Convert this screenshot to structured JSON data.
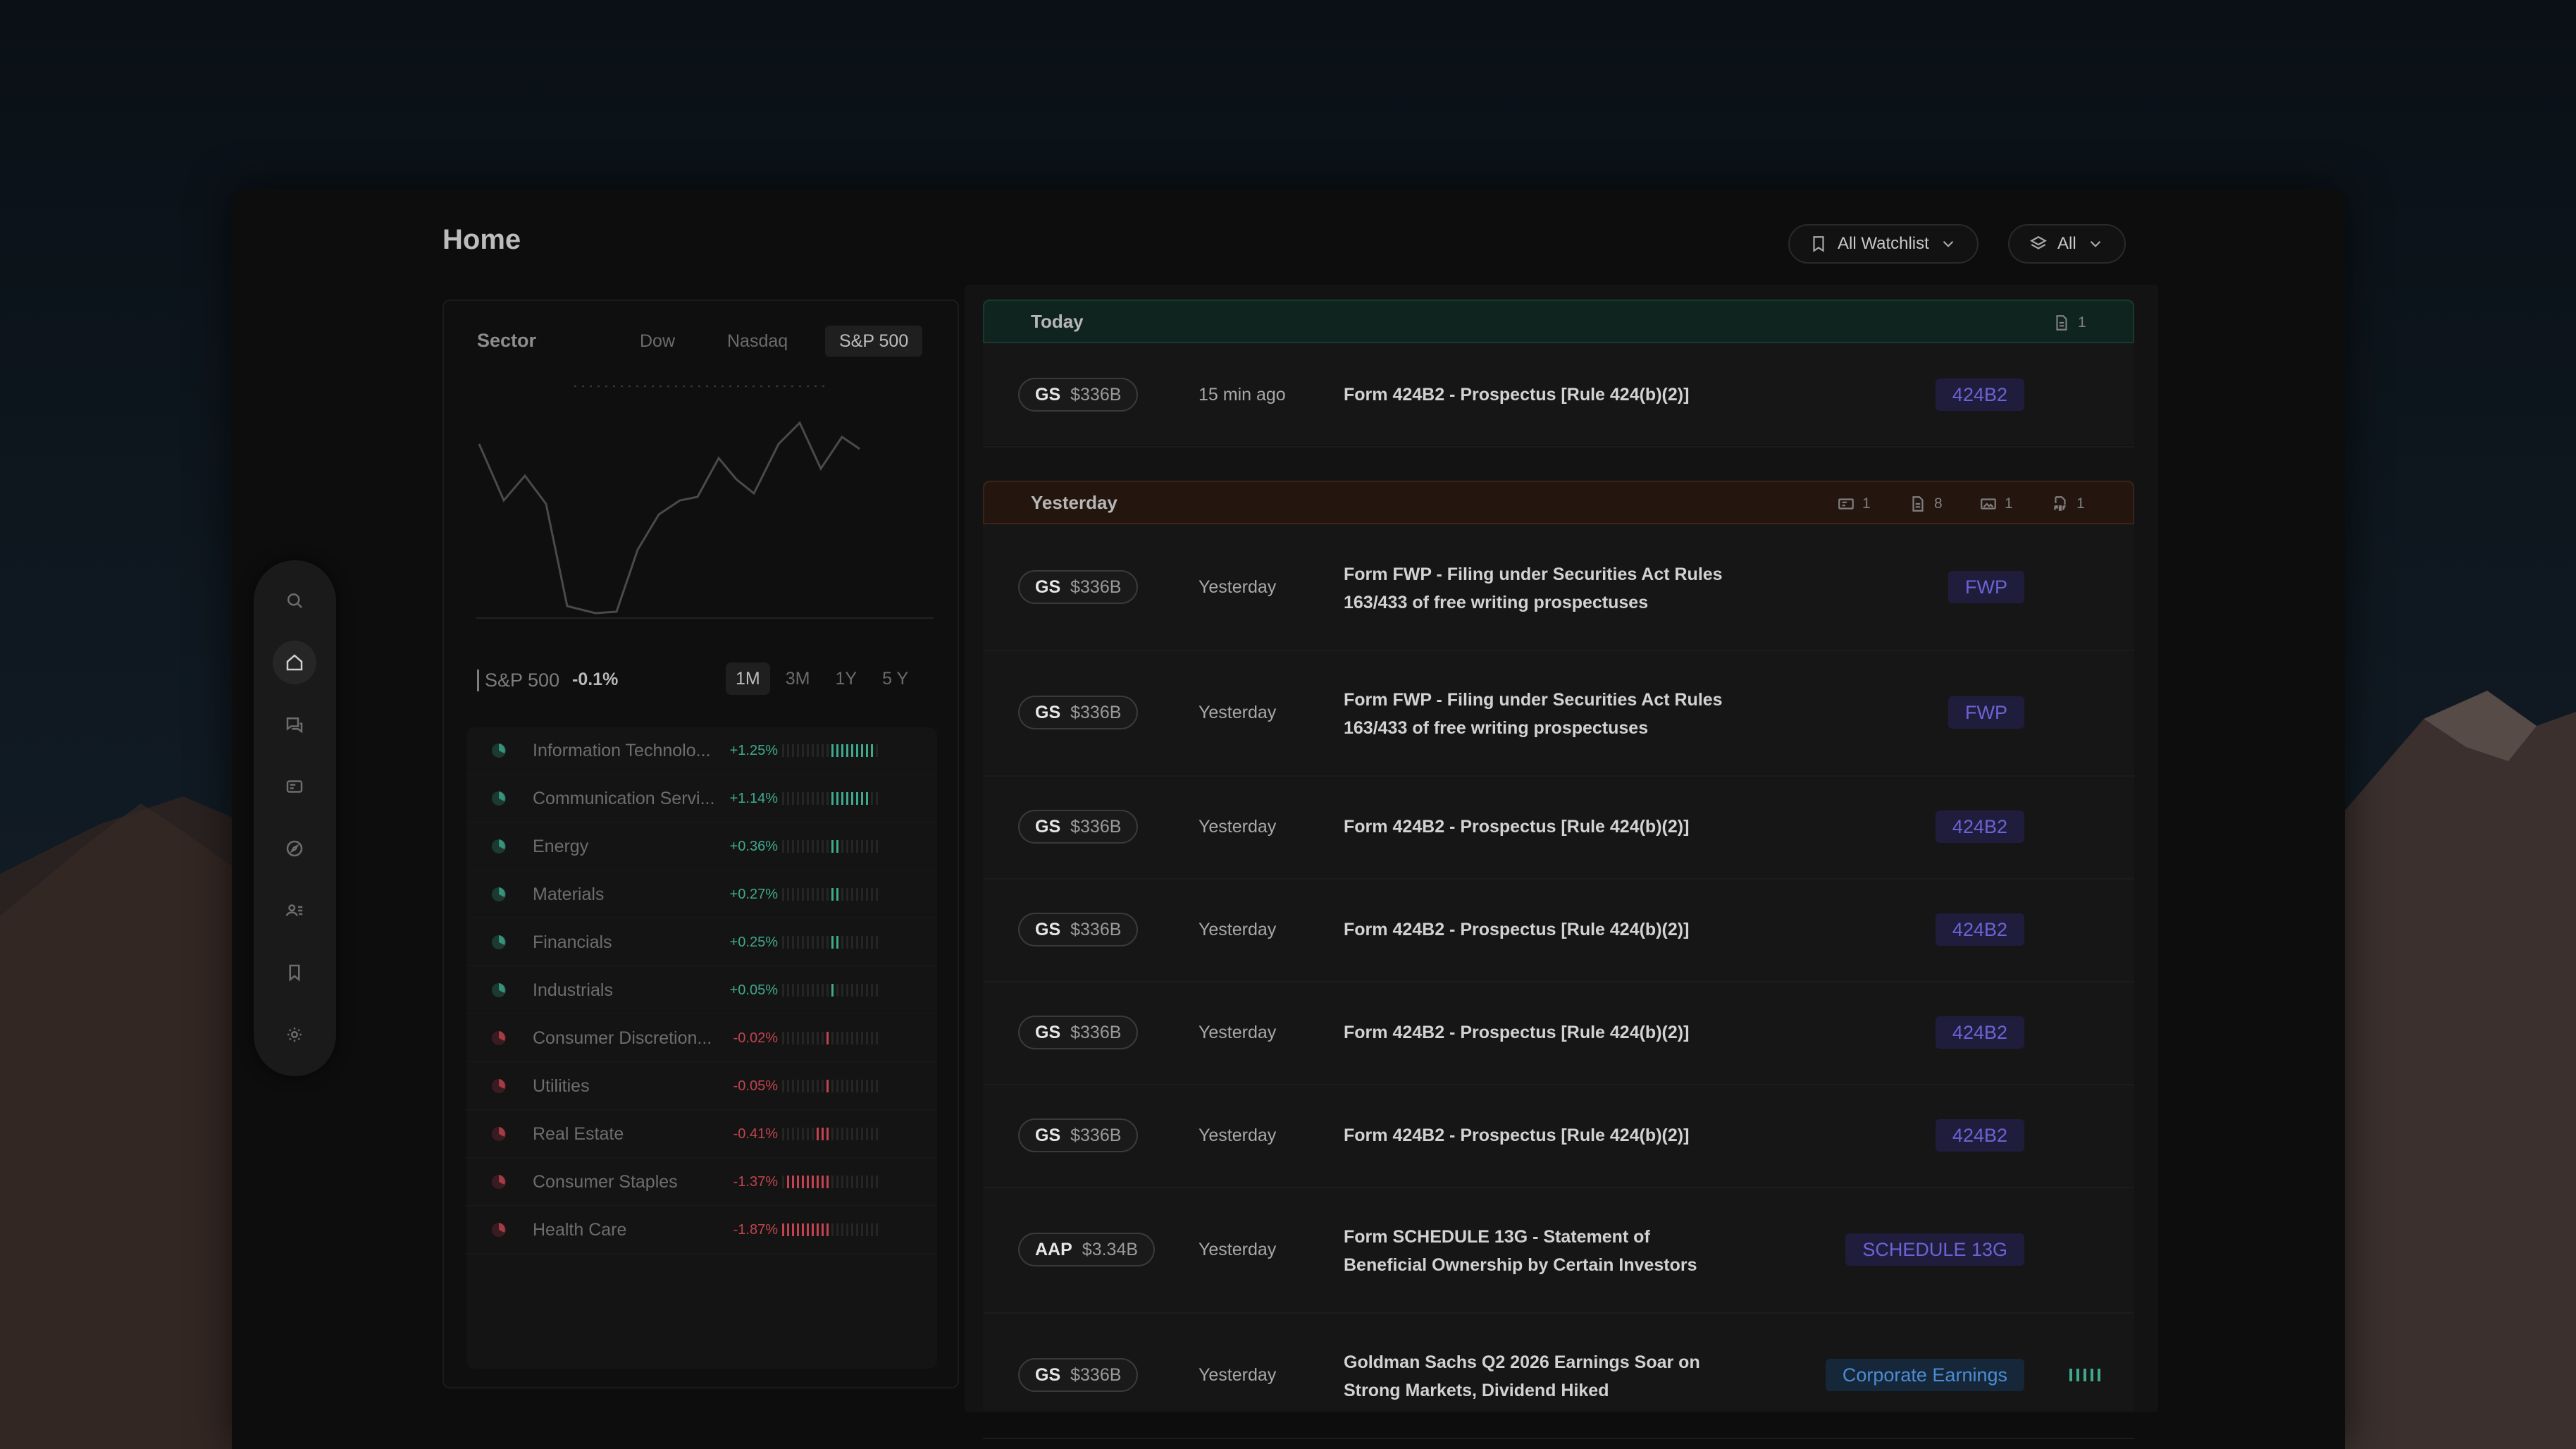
{
  "page": {
    "title": "Home"
  },
  "filters": {
    "watchlist_label": "All Watchlist",
    "type_label": "All"
  },
  "sidebar": {
    "items": [
      {
        "icon": "search-icon"
      },
      {
        "icon": "home-icon",
        "active": true
      },
      {
        "icon": "chat-icon"
      },
      {
        "icon": "card-icon"
      },
      {
        "icon": "compass-icon"
      },
      {
        "icon": "users-icon"
      },
      {
        "icon": "bookmark-icon"
      },
      {
        "icon": "gear-icon"
      }
    ]
  },
  "sector_panel": {
    "title": "Sector",
    "tabs": [
      "Dow",
      "Nasdaq",
      "S&P 500"
    ],
    "active_tab": "S&P 500",
    "index_label": "S&P 500",
    "index_change": "-0.1%",
    "ranges": [
      "1M",
      "3M",
      "1Y",
      "5 Y"
    ],
    "active_range": "1M",
    "sectors": [
      {
        "name": "Information Technolo...",
        "change": "+1.25%",
        "color": "#3fa98c",
        "bars": 9
      },
      {
        "name": "Communication Servi...",
        "change": "+1.14%",
        "color": "#3fa98c",
        "bars": 8
      },
      {
        "name": "Energy",
        "change": "+0.36%",
        "color": "#3fa98c",
        "bars": 2
      },
      {
        "name": "Materials",
        "change": "+0.27%",
        "color": "#3fa98c",
        "bars": 2
      },
      {
        "name": "Financials",
        "change": "+0.25%",
        "color": "#3fa98c",
        "bars": 2
      },
      {
        "name": "Industrials",
        "change": "+0.05%",
        "color": "#3fa98c",
        "bars": 1
      },
      {
        "name": "Consumer Discretion...",
        "change": "-0.02%",
        "color": "#c2434f",
        "bars": 1
      },
      {
        "name": "Utilities",
        "change": "-0.05%",
        "color": "#c2434f",
        "bars": 1
      },
      {
        "name": "Real Estate",
        "change": "-0.41%",
        "color": "#c2434f",
        "bars": 3
      },
      {
        "name": "Consumer Staples",
        "change": "-1.37%",
        "color": "#c2434f",
        "bars": 9
      },
      {
        "name": "Health Care",
        "change": "-1.87%",
        "color": "#c2434f",
        "bars": 12
      }
    ]
  },
  "feed": {
    "today": {
      "label": "Today",
      "count": "1"
    },
    "yesterday": {
      "label": "Yesterday",
      "counts": [
        "1",
        "8",
        "1",
        "1"
      ]
    },
    "rows": [
      {
        "ticker": "GS",
        "cap": "$336B",
        "time": "15 min ago",
        "title": "Form 424B2 - Prospectus [Rule 424(b)(2)]",
        "badge": "424B2"
      },
      {
        "ticker": "GS",
        "cap": "$336B",
        "time": "Yesterday",
        "title": "Form FWP - Filing under Securities Act Rules 163/433 of free writing prospectuses",
        "badge": "FWP"
      },
      {
        "ticker": "GS",
        "cap": "$336B",
        "time": "Yesterday",
        "title": "Form FWP - Filing under Securities Act Rules 163/433 of free writing prospectuses",
        "badge": "FWP"
      },
      {
        "ticker": "GS",
        "cap": "$336B",
        "time": "Yesterday",
        "title": "Form 424B2 - Prospectus [Rule 424(b)(2)]",
        "badge": "424B2"
      },
      {
        "ticker": "GS",
        "cap": "$336B",
        "time": "Yesterday",
        "title": "Form 424B2 - Prospectus [Rule 424(b)(2)]",
        "badge": "424B2"
      },
      {
        "ticker": "GS",
        "cap": "$336B",
        "time": "Yesterday",
        "title": "Form 424B2 - Prospectus [Rule 424(b)(2)]",
        "badge": "424B2"
      },
      {
        "ticker": "GS",
        "cap": "$336B",
        "time": "Yesterday",
        "title": "Form 424B2 - Prospectus [Rule 424(b)(2)]",
        "badge": "424B2"
      },
      {
        "ticker": "AAP",
        "cap": "$3.34B",
        "time": "Yesterday",
        "title": "Form SCHEDULE 13G - Statement of Beneficial Ownership by Certain Investors",
        "badge": "SCHEDULE 13G"
      },
      {
        "ticker": "GS",
        "cap": "$336B",
        "time": "Yesterday",
        "title": "Goldman Sachs Q2 2026 Earnings Soar on Strong Markets, Dividend Hiked",
        "badge": "Corporate Earnings"
      }
    ]
  },
  "colors": {
    "positive": "#3fa98c",
    "negative": "#c2434f",
    "badge": "#6b63d6",
    "earnings_badge": "#4c8cd4"
  }
}
